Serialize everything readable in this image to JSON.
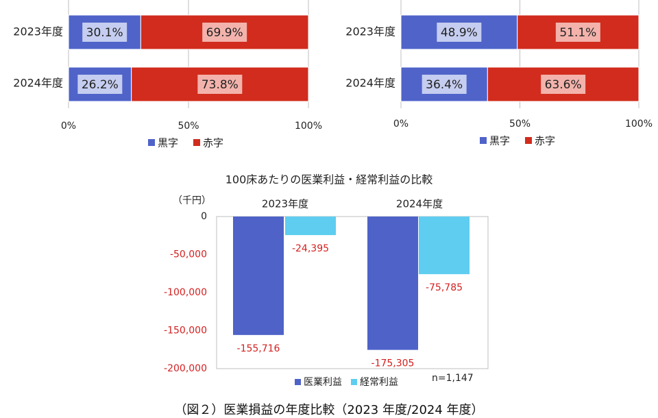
{
  "colors": {
    "black_profit": "#4f63c9",
    "red_deficit": "#d12c1d",
    "medical_profit": "#4e62c8",
    "ordinary_profit": "#5ecdf0",
    "negative_label": "#d42020"
  },
  "caption": "（図２）医業損益の年度比較（2023 年度/2024 年度）",
  "chart_data": [
    {
      "type": "bar",
      "orientation": "horizontal-stacked",
      "categories": [
        "2023年度",
        "2024年度"
      ],
      "series": [
        {
          "name": "黒字",
          "values": [
            30.1,
            26.2
          ],
          "labels": [
            "30.1%",
            "26.2%"
          ]
        },
        {
          "name": "赤字",
          "values": [
            69.9,
            73.8
          ],
          "labels": [
            "69.9%",
            "73.8%"
          ]
        }
      ],
      "xlim": [
        0,
        100
      ],
      "xticks": [
        "0%",
        "50%",
        "100%"
      ],
      "legend": [
        "黒字",
        "赤字"
      ],
      "legend_position": "bottom",
      "grid": true
    },
    {
      "type": "bar",
      "orientation": "horizontal-stacked",
      "categories": [
        "2023年度",
        "2024年度"
      ],
      "series": [
        {
          "name": "黒字",
          "values": [
            48.9,
            36.4
          ],
          "labels": [
            "48.9%",
            "36.4%"
          ]
        },
        {
          "name": "赤字",
          "values": [
            51.1,
            63.6
          ],
          "labels": [
            "51.1%",
            "63.6%"
          ]
        }
      ],
      "xlim": [
        0,
        100
      ],
      "xticks": [
        "0%",
        "50%",
        "100%"
      ],
      "legend": [
        "黒字",
        "赤字"
      ],
      "legend_position": "bottom",
      "grid": true
    },
    {
      "type": "bar",
      "title": "100床あたりの医業利益・経常利益の比較",
      "unit_label": "（千円）",
      "categories": [
        "2023年度",
        "2024年度"
      ],
      "series": [
        {
          "name": "医業利益",
          "values": [
            -155716,
            -175305
          ],
          "labels": [
            "-155,716",
            "-175,305"
          ]
        },
        {
          "name": "経常利益",
          "values": [
            -24395,
            -75785
          ],
          "labels": [
            "-24,395",
            "-75,785"
          ]
        }
      ],
      "ylim": [
        -200000,
        0
      ],
      "yticks": [
        "0",
        "-50,000",
        "-100,000",
        "-150,000",
        "-200,000"
      ],
      "yticks_values": [
        0,
        -50000,
        -100000,
        -150000,
        -200000
      ],
      "legend": [
        "医業利益",
        "経常利益"
      ],
      "legend_position": "bottom",
      "note": "n=1,147",
      "grid": false
    }
  ]
}
